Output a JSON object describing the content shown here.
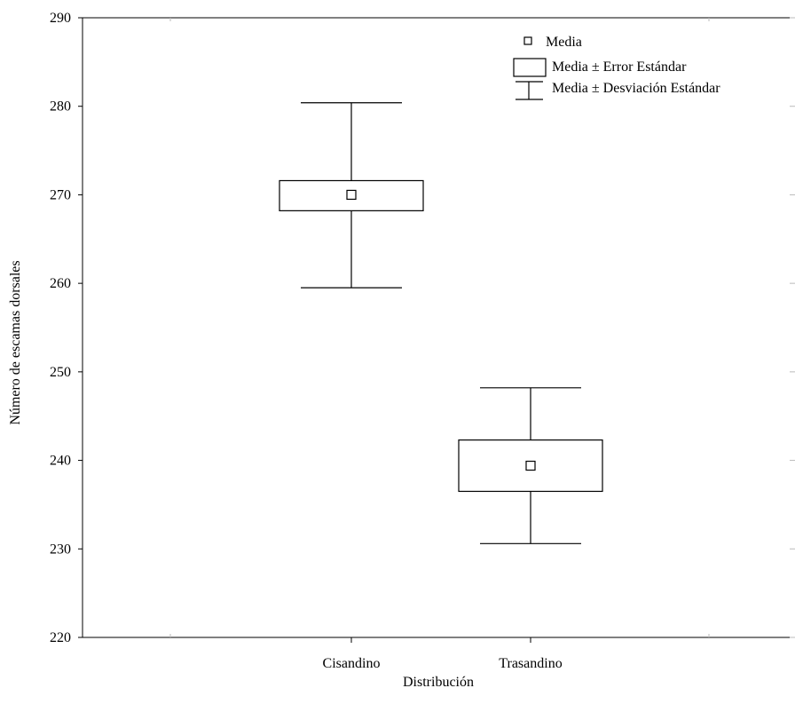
{
  "chart_data": {
    "type": "boxplot",
    "xlabel": "Distribución",
    "ylabel": "Número de escamas dorsales",
    "ylim": [
      220,
      290
    ],
    "yticks": [
      220,
      230,
      240,
      250,
      260,
      270,
      280,
      290
    ],
    "categories": [
      "Cisandino",
      "Trasandino"
    ],
    "series": [
      {
        "category": "Cisandino",
        "mean": 270.0,
        "se_low": 268.2,
        "se_high": 271.6,
        "sd_low": 259.5,
        "sd_high": 280.4
      },
      {
        "category": "Trasandino",
        "mean": 239.4,
        "se_low": 236.5,
        "se_high": 242.3,
        "sd_low": 230.6,
        "sd_high": 248.2
      }
    ],
    "legend": {
      "position": "top-right",
      "items": [
        "Media",
        "Media ± Error Estándar",
        "Media ± Desviación Estándar"
      ]
    },
    "grid": false
  }
}
